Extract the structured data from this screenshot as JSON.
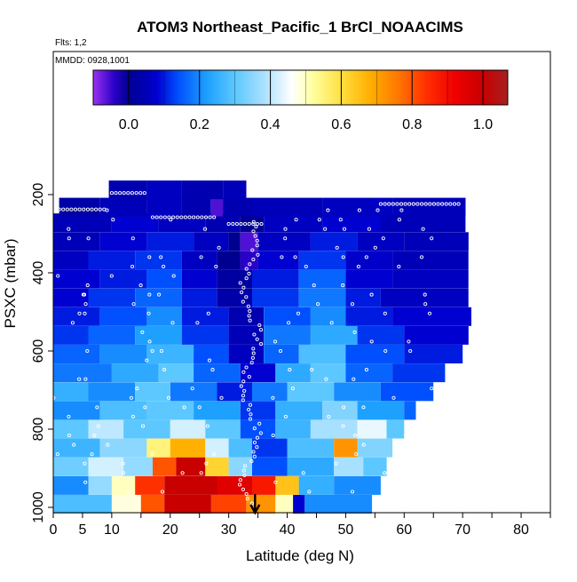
{
  "chart_data": {
    "type": "heatmap",
    "title": "ATOM3 Northeast_Pacific_1 BrCl_NOAACIMS",
    "flights_label": "Flts: 1,2",
    "date_label": "MMDD: 0928,1001",
    "xlabel": "Latitude (deg N)",
    "ylabel": "PSXC (mbar)",
    "xlim": [
      0,
      85
    ],
    "ylim": [
      1000,
      150
    ],
    "x_ticks": [
      0,
      5,
      10,
      20,
      30,
      40,
      50,
      60,
      70,
      80
    ],
    "x_minor_ticks": [
      15,
      25,
      35,
      45,
      55,
      65,
      75,
      85
    ],
    "y_ticks": [
      200,
      400,
      600,
      800,
      1000
    ],
    "colorbar": {
      "range": [
        -0.1,
        1.07
      ],
      "ticks": [
        0.0,
        0.2,
        0.4,
        0.6,
        0.8,
        1.0
      ],
      "stops": [
        {
          "v": -0.1,
          "c": "#9a32f0"
        },
        {
          "v": -0.04,
          "c": "#2a00c8"
        },
        {
          "v": 0.0,
          "c": "#000090"
        },
        {
          "v": 0.08,
          "c": "#0000d0"
        },
        {
          "v": 0.14,
          "c": "#0050ff"
        },
        {
          "v": 0.22,
          "c": "#1ea0ff"
        },
        {
          "v": 0.3,
          "c": "#5cc8ff"
        },
        {
          "v": 0.38,
          "c": "#a8e0ff"
        },
        {
          "v": 0.46,
          "c": "#ffffff"
        },
        {
          "v": 0.52,
          "c": "#ffffa0"
        },
        {
          "v": 0.6,
          "c": "#ffe040"
        },
        {
          "v": 0.68,
          "c": "#ffb000"
        },
        {
          "v": 0.76,
          "c": "#ff7800"
        },
        {
          "v": 0.84,
          "c": "#ff3000"
        },
        {
          "v": 0.92,
          "c": "#f00000"
        },
        {
          "v": 1.0,
          "c": "#c80000"
        },
        {
          "v": 1.07,
          "c": "#a82020"
        }
      ]
    },
    "marker_latitude": 34.5,
    "rows": [
      {
        "p": 992,
        "segs": [
          [
            0,
            10,
            0.28
          ],
          [
            10,
            15,
            0.48
          ],
          [
            15,
            19,
            0.8
          ],
          [
            19,
            27,
            1.0
          ],
          [
            27,
            33,
            0.82
          ],
          [
            33,
            38,
            0.72
          ],
          [
            38,
            41,
            0.5
          ],
          [
            41,
            43,
            0.08
          ],
          [
            43,
            54.5,
            0.2
          ]
        ]
      },
      {
        "p": 944,
        "segs": [
          [
            0,
            6,
            0.2
          ],
          [
            6,
            10,
            0.36
          ],
          [
            10,
            14,
            0.5
          ],
          [
            14,
            19,
            0.84
          ],
          [
            19,
            28,
            1.0
          ],
          [
            28,
            34,
            0.95
          ],
          [
            34,
            38,
            0.88
          ],
          [
            38,
            42,
            0.65
          ],
          [
            42,
            48,
            0.25
          ],
          [
            48,
            56,
            0.2
          ]
        ]
      },
      {
        "p": 896,
        "segs": [
          [
            0,
            6,
            0.32
          ],
          [
            6,
            12,
            0.42
          ],
          [
            12,
            17,
            0.36
          ],
          [
            17,
            21,
            0.8
          ],
          [
            21,
            26,
            1.0
          ],
          [
            26,
            30,
            0.62
          ],
          [
            30,
            34,
            0.35
          ],
          [
            34,
            40,
            0.14
          ],
          [
            40,
            48,
            0.24
          ],
          [
            48,
            53,
            0.38
          ],
          [
            53,
            57,
            0.3
          ]
        ]
      },
      {
        "p": 848,
        "segs": [
          [
            0,
            8,
            0.26
          ],
          [
            8,
            16,
            0.35
          ],
          [
            16,
            20,
            0.55
          ],
          [
            20,
            26,
            0.68
          ],
          [
            26,
            30,
            0.42
          ],
          [
            30,
            34,
            0.28
          ],
          [
            34,
            40,
            0.12
          ],
          [
            40,
            48,
            0.28
          ],
          [
            48,
            52,
            0.72
          ],
          [
            52,
            58,
            0.34
          ]
        ]
      },
      {
        "p": 800,
        "segs": [
          [
            0,
            6,
            0.3
          ],
          [
            6,
            12,
            0.4
          ],
          [
            12,
            20,
            0.3
          ],
          [
            20,
            26,
            0.42
          ],
          [
            26,
            32,
            0.3
          ],
          [
            32,
            38,
            0.14
          ],
          [
            38,
            44,
            0.26
          ],
          [
            44,
            52,
            0.38
          ],
          [
            52,
            57,
            0.44
          ],
          [
            57,
            60,
            0.3
          ]
        ]
      },
      {
        "p": 752,
        "segs": [
          [
            0,
            8,
            0.2
          ],
          [
            8,
            16,
            0.28
          ],
          [
            16,
            24,
            0.3
          ],
          [
            24,
            32,
            0.22
          ],
          [
            32,
            38,
            0.12
          ],
          [
            38,
            46,
            0.25
          ],
          [
            46,
            52,
            0.34
          ],
          [
            52,
            60,
            0.22
          ],
          [
            60,
            62,
            0.16
          ]
        ]
      },
      {
        "p": 704,
        "segs": [
          [
            0,
            6,
            0.25
          ],
          [
            6,
            14,
            0.2
          ],
          [
            14,
            20,
            0.3
          ],
          [
            20,
            28,
            0.18
          ],
          [
            28,
            34,
            0.1
          ],
          [
            34,
            40,
            0.18
          ],
          [
            40,
            48,
            0.3
          ],
          [
            48,
            56,
            0.2
          ],
          [
            56,
            65,
            0.14
          ]
        ]
      },
      {
        "p": 656,
        "segs": [
          [
            0,
            10,
            0.18
          ],
          [
            10,
            18,
            0.24
          ],
          [
            18,
            24,
            0.3
          ],
          [
            24,
            32,
            0.16
          ],
          [
            32,
            38,
            0.08
          ],
          [
            38,
            44,
            0.24
          ],
          [
            44,
            50,
            0.3
          ],
          [
            50,
            58,
            0.16
          ],
          [
            58,
            67,
            0.12
          ]
        ]
      },
      {
        "p": 608,
        "segs": [
          [
            0,
            8,
            0.16
          ],
          [
            8,
            16,
            0.2
          ],
          [
            16,
            24,
            0.26
          ],
          [
            24,
            30,
            0.14
          ],
          [
            30,
            36,
            0.06
          ],
          [
            36,
            42,
            0.16
          ],
          [
            42,
            50,
            0.28
          ],
          [
            50,
            60,
            0.14
          ],
          [
            60,
            70,
            0.1
          ]
        ]
      },
      {
        "p": 560,
        "segs": [
          [
            0,
            6,
            0.12
          ],
          [
            6,
            14,
            0.16
          ],
          [
            14,
            22,
            0.22
          ],
          [
            22,
            30,
            0.12
          ],
          [
            30,
            36,
            0.05
          ],
          [
            36,
            44,
            0.18
          ],
          [
            44,
            52,
            0.24
          ],
          [
            52,
            60,
            0.12
          ],
          [
            60,
            71,
            0.08
          ]
        ]
      },
      {
        "p": 512,
        "segs": [
          [
            0,
            8,
            0.1
          ],
          [
            8,
            16,
            0.14
          ],
          [
            16,
            22,
            0.2
          ],
          [
            22,
            30,
            0.1
          ],
          [
            30,
            36,
            0.04
          ],
          [
            36,
            44,
            0.14
          ],
          [
            44,
            50,
            0.2
          ],
          [
            50,
            58,
            0.1
          ],
          [
            58,
            71.5,
            0.08
          ]
        ]
      },
      {
        "p": 464,
        "segs": [
          [
            0,
            6,
            0.08
          ],
          [
            6,
            14,
            0.12
          ],
          [
            14,
            22,
            0.16
          ],
          [
            22,
            28,
            0.1
          ],
          [
            28,
            34,
            0.03
          ],
          [
            34,
            42,
            0.12
          ],
          [
            42,
            50,
            0.18
          ],
          [
            50,
            56,
            0.1
          ],
          [
            56,
            71,
            0.06
          ]
        ]
      },
      {
        "p": 416,
        "segs": [
          [
            0,
            8,
            0.08
          ],
          [
            8,
            16,
            0.1
          ],
          [
            16,
            22,
            0.14
          ],
          [
            22,
            28,
            0.08
          ],
          [
            28,
            34,
            0.02
          ],
          [
            34,
            42,
            0.1
          ],
          [
            42,
            50,
            0.16
          ],
          [
            50,
            58,
            0.08
          ],
          [
            58,
            71,
            0.06
          ]
        ]
      },
      {
        "p": 368,
        "segs": [
          [
            0,
            6,
            0.06
          ],
          [
            6,
            14,
            0.1
          ],
          [
            14,
            22,
            0.12
          ],
          [
            22,
            28,
            0.06
          ],
          [
            28,
            32,
            0.0
          ],
          [
            32,
            35,
            -0.04
          ],
          [
            35,
            42,
            0.08
          ],
          [
            42,
            50,
            0.12
          ],
          [
            50,
            58,
            0.07
          ],
          [
            58,
            71,
            0.05
          ]
        ]
      },
      {
        "p": 320,
        "segs": [
          [
            0,
            8,
            0.05
          ],
          [
            8,
            16,
            0.08
          ],
          [
            16,
            24,
            0.1
          ],
          [
            24,
            30,
            0.06
          ],
          [
            30,
            32,
            0.0
          ],
          [
            32,
            35,
            -0.06
          ],
          [
            35,
            44,
            0.06
          ],
          [
            44,
            52,
            0.1
          ],
          [
            52,
            60,
            0.06
          ],
          [
            60,
            71,
            0.05
          ]
        ]
      },
      {
        "p": 272,
        "segs": [
          [
            0,
            10,
            0.05
          ],
          [
            10,
            18,
            0.08
          ],
          [
            18,
            26,
            0.06
          ],
          [
            26,
            32,
            0.04
          ],
          [
            32,
            36,
            0.0
          ],
          [
            36,
            46,
            0.06
          ],
          [
            46,
            56,
            0.08
          ],
          [
            56,
            70.5,
            0.05
          ]
        ]
      },
      {
        "p": 232,
        "segs": [
          [
            1,
            8,
            0.03
          ],
          [
            8,
            16,
            0.05
          ],
          [
            16,
            22,
            0.06
          ],
          [
            22,
            27,
            0.04
          ],
          [
            27,
            29,
            -0.06
          ],
          [
            29,
            34,
            0.04
          ],
          [
            34,
            46,
            0.05
          ],
          [
            46,
            58,
            0.06
          ],
          [
            58,
            70.5,
            0.05
          ]
        ]
      },
      {
        "p": 188,
        "segs": [
          [
            9.5,
            16,
            0.04
          ],
          [
            16,
            22,
            0.06
          ],
          [
            22,
            29,
            0.04
          ],
          [
            29,
            33,
            0.05
          ]
        ]
      }
    ]
  }
}
